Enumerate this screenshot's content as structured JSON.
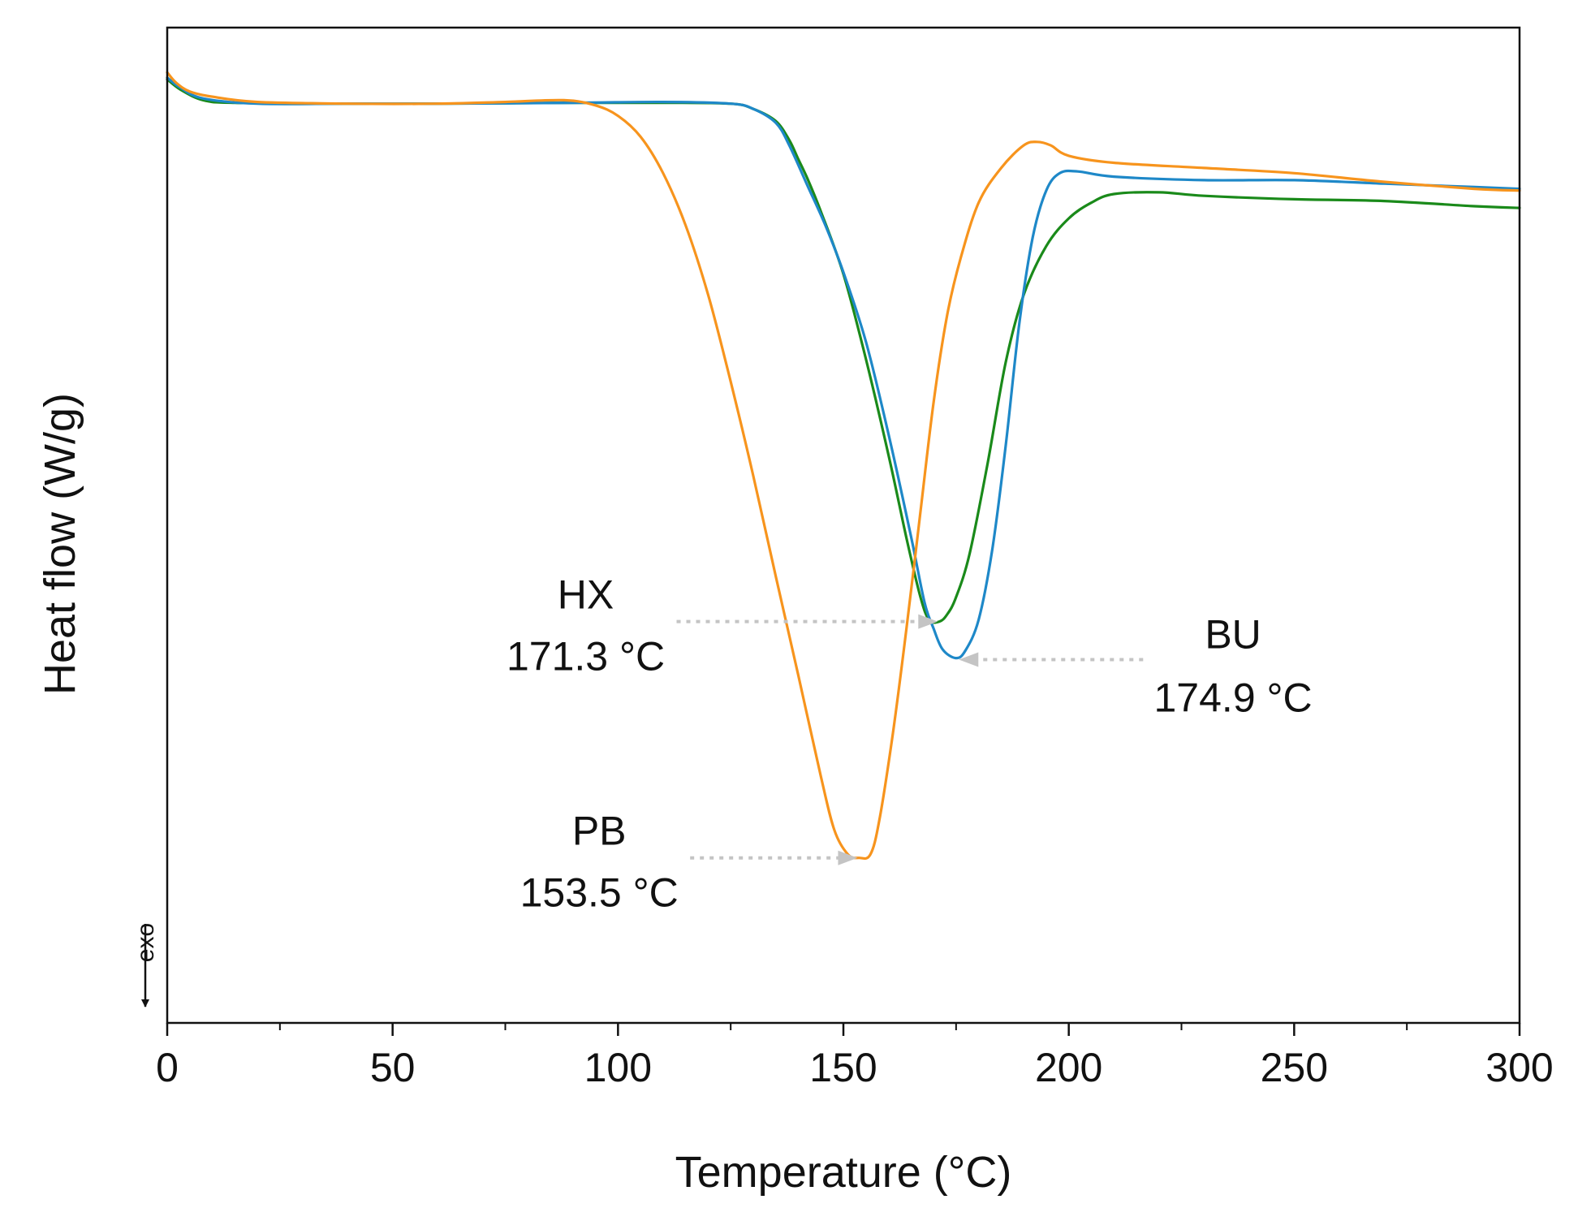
{
  "chart_data": {
    "type": "line",
    "title": "",
    "xlabel": "Temperature (°C)",
    "ylabel": "Heat flow (W/g)",
    "xlim": [
      0,
      300
    ],
    "ylim": [
      0,
      100
    ],
    "x_ticks": [
      0,
      50,
      100,
      150,
      200,
      250,
      300
    ],
    "x_tick_labels": [
      "0",
      "50",
      "100",
      "150",
      "200",
      "250",
      "300"
    ],
    "y_ticks_labeled": false,
    "exo_label": "exo",
    "series": [
      {
        "name": "PB",
        "color": "#f7941d",
        "points": [
          [
            0,
            100
          ],
          [
            2,
            98.8
          ],
          [
            5,
            97.8
          ],
          [
            10,
            97.2
          ],
          [
            20,
            96.6
          ],
          [
            40,
            96.4
          ],
          [
            60,
            96.4
          ],
          [
            75,
            96.6
          ],
          [
            88,
            96.8
          ],
          [
            95,
            96.2
          ],
          [
            100,
            95.0
          ],
          [
            105,
            92.6
          ],
          [
            110,
            88.4
          ],
          [
            115,
            82.4
          ],
          [
            120,
            74.4
          ],
          [
            125,
            64.4
          ],
          [
            130,
            53.6
          ],
          [
            135,
            42.0
          ],
          [
            140,
            30.6
          ],
          [
            145,
            19.0
          ],
          [
            148,
            12.8
          ],
          [
            151,
            10.0
          ],
          [
            153.5,
            9.6
          ],
          [
            156,
            10.0
          ],
          [
            158,
            14.0
          ],
          [
            161,
            24.0
          ],
          [
            164,
            36.0
          ],
          [
            167,
            49.0
          ],
          [
            170,
            62.0
          ],
          [
            173,
            72.0
          ],
          [
            176,
            78.6
          ],
          [
            180,
            85.0
          ],
          [
            185,
            89.0
          ],
          [
            190,
            91.6
          ],
          [
            193,
            92.0
          ],
          [
            196,
            91.6
          ],
          [
            200,
            90.4
          ],
          [
            210,
            89.6
          ],
          [
            230,
            89.0
          ],
          [
            250,
            88.4
          ],
          [
            270,
            87.4
          ],
          [
            290,
            86.6
          ],
          [
            300,
            86.4
          ]
        ]
      },
      {
        "name": "HX",
        "color": "#1a8a1a",
        "points": [
          [
            0,
            99.2
          ],
          [
            3,
            98.0
          ],
          [
            8,
            96.8
          ],
          [
            15,
            96.5
          ],
          [
            40,
            96.4
          ],
          [
            60,
            96.4
          ],
          [
            90,
            96.5
          ],
          [
            110,
            96.5
          ],
          [
            125,
            96.4
          ],
          [
            130,
            95.8
          ],
          [
            135,
            94.4
          ],
          [
            138,
            92.2
          ],
          [
            140,
            90.0
          ],
          [
            142,
            87.8
          ],
          [
            145,
            84.0
          ],
          [
            150,
            76.8
          ],
          [
            155,
            67.0
          ],
          [
            160,
            56.0
          ],
          [
            164,
            46.4
          ],
          [
            167,
            39.8
          ],
          [
            169,
            37.0
          ],
          [
            171.3,
            36.8
          ],
          [
            173,
            37.6
          ],
          [
            175,
            39.6
          ],
          [
            178,
            44.6
          ],
          [
            182,
            55.0
          ],
          [
            186,
            66.6
          ],
          [
            190,
            74.4
          ],
          [
            195,
            80.0
          ],
          [
            200,
            83.2
          ],
          [
            205,
            85.0
          ],
          [
            210,
            86.0
          ],
          [
            220,
            86.2
          ],
          [
            230,
            85.8
          ],
          [
            250,
            85.4
          ],
          [
            270,
            85.2
          ],
          [
            290,
            84.6
          ],
          [
            300,
            84.4
          ]
        ]
      },
      {
        "name": "BU",
        "color": "#1e88c8",
        "points": [
          [
            0,
            99.4
          ],
          [
            3,
            98.2
          ],
          [
            8,
            97.0
          ],
          [
            20,
            96.4
          ],
          [
            40,
            96.4
          ],
          [
            60,
            96.4
          ],
          [
            90,
            96.5
          ],
          [
            110,
            96.6
          ],
          [
            125,
            96.4
          ],
          [
            130,
            95.8
          ],
          [
            135,
            94.2
          ],
          [
            138,
            91.6
          ],
          [
            142,
            87.0
          ],
          [
            146,
            82.4
          ],
          [
            150,
            77.0
          ],
          [
            155,
            69.0
          ],
          [
            160,
            58.4
          ],
          [
            165,
            46.6
          ],
          [
            168,
            39.0
          ],
          [
            170,
            36.0
          ],
          [
            172,
            33.6
          ],
          [
            174.9,
            32.6
          ],
          [
            177,
            33.4
          ],
          [
            180,
            37.0
          ],
          [
            183,
            45.0
          ],
          [
            186,
            57.0
          ],
          [
            189,
            71.0
          ],
          [
            192,
            81.0
          ],
          [
            195,
            86.4
          ],
          [
            198,
            88.4
          ],
          [
            202,
            88.6
          ],
          [
            210,
            88.0
          ],
          [
            230,
            87.6
          ],
          [
            250,
            87.6
          ],
          [
            270,
            87.2
          ],
          [
            290,
            86.8
          ],
          [
            300,
            86.6
          ]
        ]
      }
    ],
    "annotations": [
      {
        "series": "HX",
        "label": "HX",
        "value_text": "171.3 °C",
        "x": 171.3,
        "y": 36.8,
        "text_side": "left",
        "line_from_x": 113
      },
      {
        "series": "BU",
        "label": "BU",
        "value_text": "174.9 °C",
        "x": 174.9,
        "y": 32.6,
        "text_side": "right",
        "line_to_x": 217
      },
      {
        "series": "PB",
        "label": "PB",
        "value_text": "153.5 °C",
        "x": 153.5,
        "y": 9.6,
        "text_side": "left",
        "line_from_x": 116
      }
    ]
  }
}
